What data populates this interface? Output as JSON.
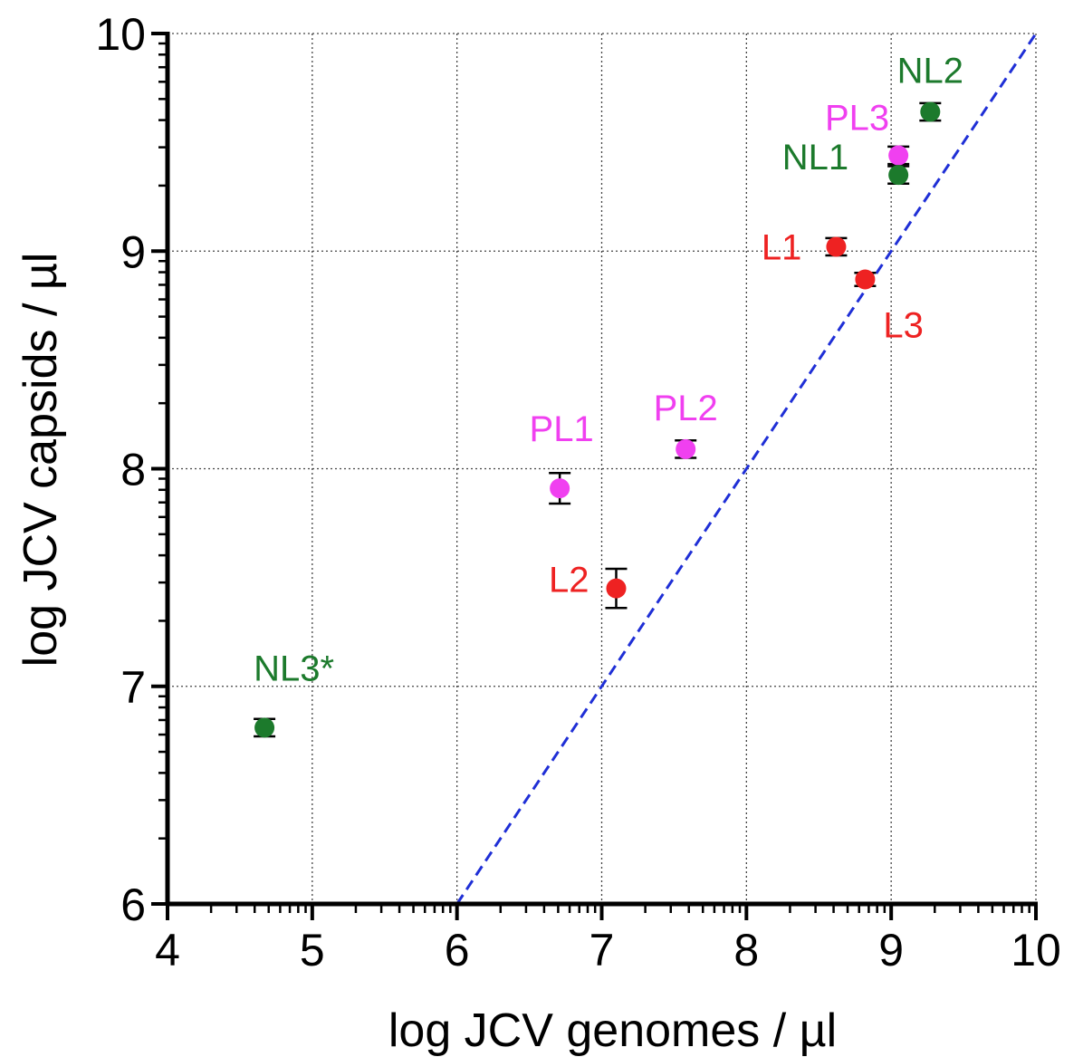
{
  "chart_data": {
    "type": "scatter",
    "title": "",
    "xlabel": "log JCV genomes / µl",
    "ylabel": "log JCV capsids / µl",
    "xlim": [
      4,
      10
    ],
    "ylim": [
      6,
      10
    ],
    "x_ticks": [
      "4",
      "5",
      "6",
      "7",
      "8",
      "9",
      "10"
    ],
    "y_ticks": [
      "6",
      "7",
      "8",
      "9",
      "10"
    ],
    "grid": true,
    "reference_line": {
      "style": "dashed",
      "color": "#1f2fd6",
      "from": [
        6,
        6
      ],
      "to": [
        10,
        10
      ]
    },
    "colors": {
      "L": "#ee2222",
      "PL": "#f040f0",
      "NL": "#1c7a2c",
      "axis": "#000000",
      "grid": "#444444"
    },
    "points": [
      {
        "label": "NL2",
        "x": 9.27,
        "y": 9.64,
        "err": 0.04,
        "group": "NL"
      },
      {
        "label": "PL3",
        "x": 9.05,
        "y": 9.44,
        "err": 0.04,
        "group": "PL"
      },
      {
        "label": "NL1",
        "x": 9.05,
        "y": 9.35,
        "err": 0.04,
        "group": "NL"
      },
      {
        "label": "L1",
        "x": 8.62,
        "y": 9.02,
        "err": 0.04,
        "group": "L"
      },
      {
        "label": "L3",
        "x": 8.82,
        "y": 8.87,
        "err": 0.03,
        "group": "L"
      },
      {
        "label": "PL2",
        "x": 7.58,
        "y": 8.09,
        "err": 0.04,
        "group": "PL"
      },
      {
        "label": "PL1",
        "x": 6.71,
        "y": 7.91,
        "err": 0.07,
        "group": "PL"
      },
      {
        "label": "L2",
        "x": 7.1,
        "y": 7.45,
        "err": 0.09,
        "group": "L"
      },
      {
        "label": "NL3*",
        "x": 4.67,
        "y": 6.81,
        "err": 0.04,
        "group": "NL"
      }
    ]
  }
}
